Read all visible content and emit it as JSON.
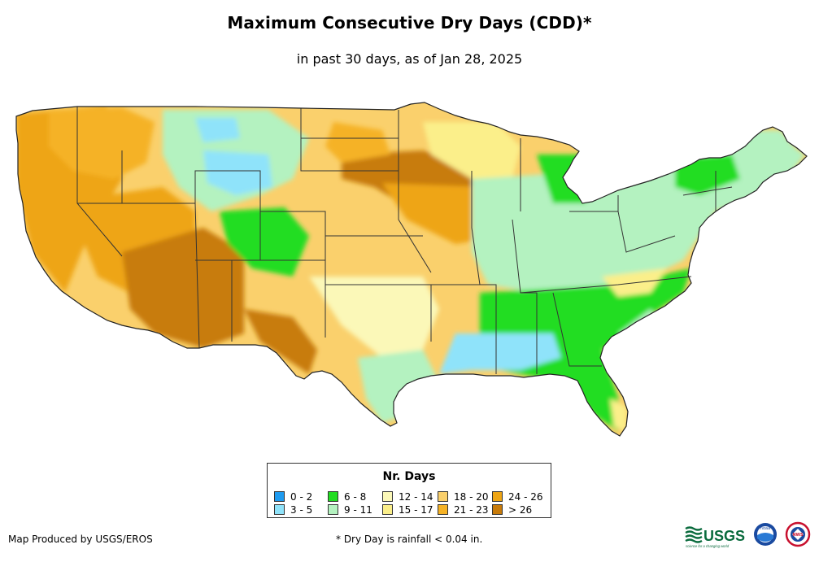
{
  "title": "Maximum Consecutive Dry Days (CDD)*",
  "subtitle": "in past 30 days, as of Jan 28, 2025",
  "legend": {
    "title": "Nr. Days",
    "items": [
      {
        "label": "0 - 2",
        "color": "#1e9bf0"
      },
      {
        "label": "3 - 5",
        "color": "#8fe3fa"
      },
      {
        "label": "6 - 8",
        "color": "#22dd22"
      },
      {
        "label": "9 - 11",
        "color": "#b4f2c0"
      },
      {
        "label": "12 - 14",
        "color": "#fbf8b8"
      },
      {
        "label": "15 - 17",
        "color": "#fbef8a"
      },
      {
        "label": "18 - 20",
        "color": "#fad06c"
      },
      {
        "label": "21 - 23",
        "color": "#f5b225"
      },
      {
        "label": "24 - 26",
        "color": "#eea514"
      },
      {
        "label": "> 26",
        "color": "#c87b0a"
      }
    ]
  },
  "credit": "Map Produced by USGS/EROS",
  "footnote": "* Dry Day is rainfall < 0.04 in.",
  "logos": {
    "usgs": "USGS",
    "usgs_tagline": "science for a changing world",
    "noaa": "noaa",
    "nws": "NWS"
  }
}
